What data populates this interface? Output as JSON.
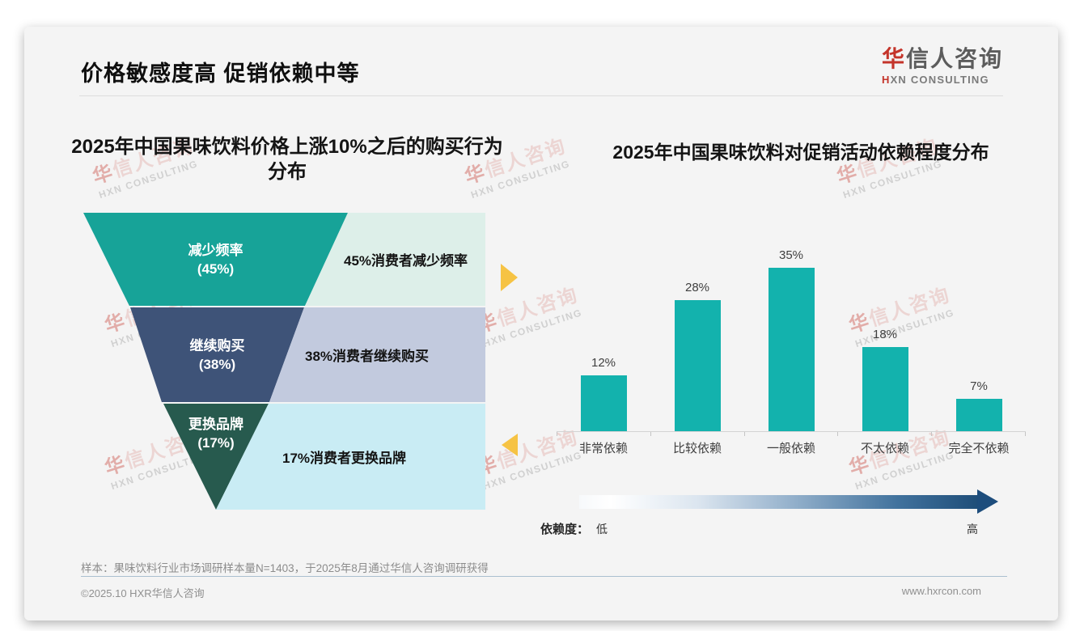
{
  "header": {
    "title": "价格敏感度高 促销依赖中等",
    "logo": {
      "line1_accent": "华",
      "line1_rest": "信人咨询",
      "line2_accent": "H",
      "line2_rest": "XN CONSULTING"
    }
  },
  "watermark": {
    "line1_accent": "华",
    "line1_rest": "信人咨询",
    "line2": "HXN CONSULTING"
  },
  "chart_data": [
    {
      "type": "funnel",
      "title": "2025年中国果味饮料价格上涨10%之后的购买行为分布",
      "title_lines": [
        "2025年中国果味饮料价格上涨10%之后的购买行为",
        "分布"
      ],
      "segments": [
        {
          "stage": "减少频率",
          "pct_label": "(45%)",
          "value": 45,
          "annotation": "45%消费者减少频率",
          "color": "#17a398",
          "annotation_bg": "#ddefe9"
        },
        {
          "stage": "继续购买",
          "pct_label": "(38%)",
          "value": 38,
          "annotation": "38%消费者继续购买",
          "color": "#3e5378",
          "annotation_bg": "#c2cade"
        },
        {
          "stage": "更换品牌",
          "pct_label": "(17%)",
          "value": 17,
          "annotation": "17%消费者更换品牌",
          "color": "#275a4e",
          "annotation_bg": "#c9ecf4"
        }
      ]
    },
    {
      "type": "bar",
      "title": "2025年中国果味饮料对促销活动依赖程度分布",
      "categories": [
        "非常依赖",
        "比较依赖",
        "一般依赖",
        "不太依赖",
        "完全不依赖"
      ],
      "values": [
        12,
        28,
        35,
        18,
        7
      ],
      "data_labels": [
        "12%",
        "28%",
        "35%",
        "18%",
        "7%"
      ],
      "bar_color": "#13b2ad",
      "ylim": [
        0,
        38.6
      ],
      "grid": false,
      "legend_position": "none",
      "x_axis_note": {
        "label": "依赖度：",
        "low": "低",
        "high": "高"
      }
    }
  ],
  "accent_colors": {
    "gold_arrow": "#f6c344",
    "gradient_start": "#ffffff",
    "gradient_end": "#1f4e79",
    "logo_red": "#c4342a"
  },
  "footnote": "样本：果味饮料行业市场调研样本量N=1403，于2025年8月通过华信人咨询调研获得",
  "footer": {
    "copyright": "©2025.10 HXR华信人咨询",
    "website": "www.hxrcon.com"
  }
}
